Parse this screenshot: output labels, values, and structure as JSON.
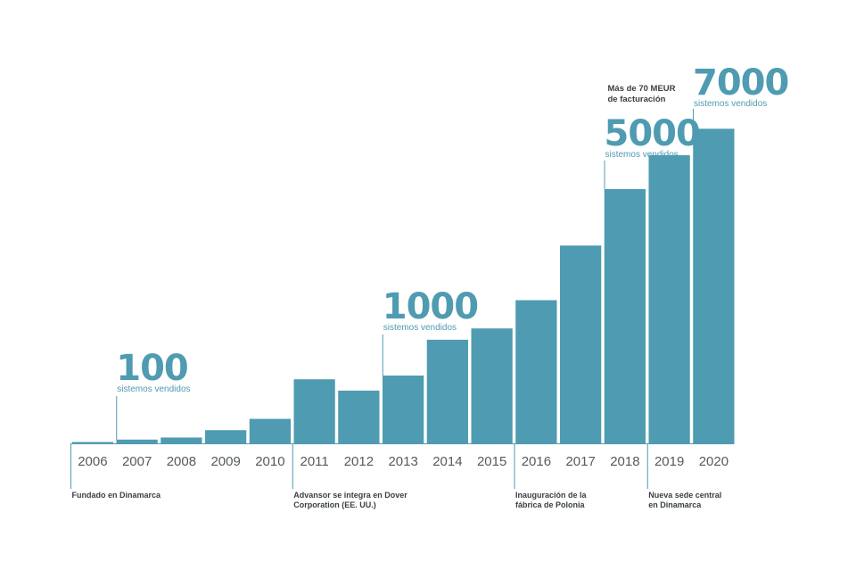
{
  "chart_data": {
    "type": "bar",
    "categories": [
      "2006",
      "2007",
      "2008",
      "2009",
      "2010",
      "2011",
      "2012",
      "2013",
      "2014",
      "2015",
      "2016",
      "2017",
      "2018",
      "2019",
      "2020"
    ],
    "values": [
      10,
      100,
      155,
      350,
      650,
      1700,
      1400,
      1800,
      2750,
      3050,
      3800,
      5250,
      6750,
      7650,
      8350
    ],
    "ylim": [
      0,
      8500
    ],
    "bar_color": "#4f9bb1",
    "milestones": [
      {
        "category": "2007",
        "value": "100",
        "caption": "sistemos vendidos"
      },
      {
        "category": "2013",
        "value": "1000",
        "caption": "sistemos vendidos"
      },
      {
        "category": "2018",
        "value": "5000",
        "caption": "sistemos vendidos",
        "note": [
          "Más de 70 MEUR",
          "de facturación"
        ]
      },
      {
        "category": "2020",
        "value": "7000",
        "caption": "sistemos vendidos"
      }
    ],
    "events": [
      {
        "category": "2006",
        "lines": [
          "Fundado  en Dinamarca"
        ]
      },
      {
        "category": "2011",
        "lines": [
          "Advansor se integra  en Dover",
          "Corporation  (EE. UU.)"
        ]
      },
      {
        "category": "2016",
        "lines": [
          "Inauguración  de la",
          "fábrica  de Polonia"
        ]
      },
      {
        "category": "2019",
        "lines": [
          "Nueva sede central",
          "en Dinamarca"
        ]
      }
    ]
  }
}
